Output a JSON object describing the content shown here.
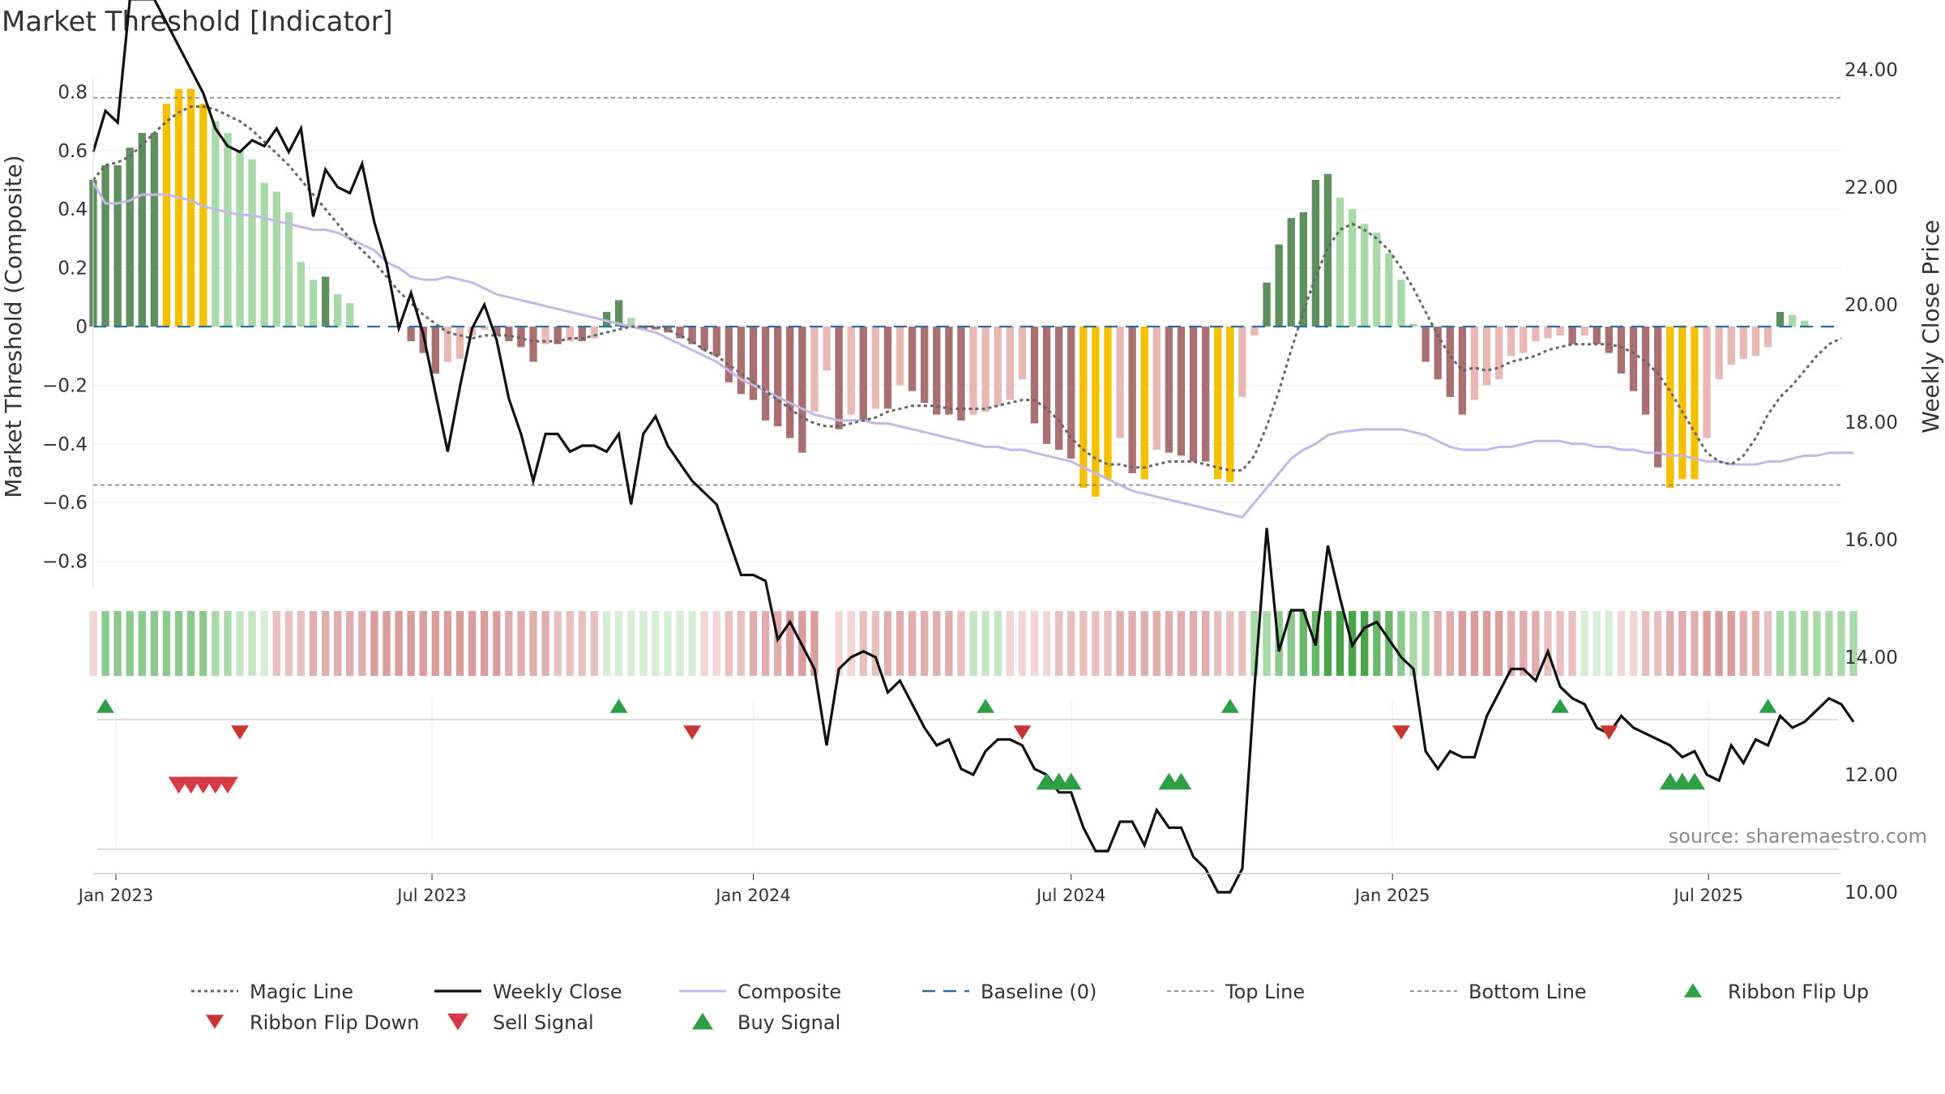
{
  "chart_data": {
    "type": "bar",
    "title": "Market Threshold [Indicator]",
    "ylabel": "Market Threshold (Composite)",
    "y2label": "Weekly Close Price",
    "ylim": [
      -0.89,
      0.84
    ],
    "y2lim": [
      8.8,
      26.4
    ],
    "yticks": [
      0.8,
      0.6,
      0.4,
      0.2,
      0,
      -0.2,
      -0.4,
      -0.6,
      -0.8
    ],
    "ytick_labels": [
      "0.8",
      "0.6",
      "0.4",
      "0.2",
      "0",
      "−0.2",
      "−0.4",
      "−0.6",
      "−0.8"
    ],
    "y2ticks": [
      26,
      24,
      22,
      20,
      18,
      16,
      14,
      12,
      10
    ],
    "y2tick_labels": [
      "26.00",
      "24.00",
      "22.00",
      "20.00",
      "18.00",
      "16.00",
      "14.00",
      "12.00",
      "10.00"
    ],
    "x_start": "2022-12-19",
    "x_end": "2025-09-15",
    "x_ticks": [
      {
        "date": "2023-01-01",
        "label": "Jan 2023"
      },
      {
        "date": "2023-07-01",
        "label": "Jul 2023"
      },
      {
        "date": "2024-01-01",
        "label": "Jan 2024"
      },
      {
        "date": "2024-07-01",
        "label": "Jul 2024"
      },
      {
        "date": "2025-01-01",
        "label": "Jan 2025"
      },
      {
        "date": "2025-07-01",
        "label": "Jul 2025"
      }
    ],
    "top_line": 0.78,
    "bottom_line": -0.54,
    "baseline": 0,
    "source": "source: sharemaestro.com",
    "bar_colors": {
      "strong_pos": "#5e8f5e",
      "weak_pos": "#a9d8a9",
      "strong_neg": "#a87070",
      "weak_neg": "#e8b8b4",
      "extreme": "#f5c000"
    },
    "composite_bars": [
      {
        "start": "2022-12-19",
        "values": [
          0.5,
          0.55,
          0.55,
          0.61,
          0.66,
          0.66,
          0.76,
          0.81,
          0.81,
          0.76,
          0.7,
          0.66,
          0.6,
          0.57,
          0.49,
          0.46,
          0.39,
          0.22,
          0.16,
          0.17,
          0.11,
          0.08,
          0,
          0,
          0,
          0,
          -0.05,
          -0.09,
          -0.16,
          -0.12,
          -0.11,
          -0.03,
          -0.01,
          -0.03,
          -0.05,
          -0.07,
          -0.12,
          -0.06,
          -0.06,
          -0.05,
          -0.05,
          -0.04,
          0.05,
          0.09,
          0.03,
          -0.01,
          -0.01,
          -0.02,
          -0.04,
          -0.06,
          -0.08,
          -0.1,
          -0.19,
          -0.23,
          -0.25,
          -0.32,
          -0.34,
          -0.38,
          -0.43,
          -0.29,
          -0.15,
          -0.35,
          -0.3,
          -0.32,
          -0.28,
          -0.28,
          -0.2,
          -0.22,
          -0.26,
          -0.3,
          -0.3,
          -0.32,
          -0.3,
          -0.29,
          -0.27,
          -0.25,
          -0.18,
          -0.33,
          -0.4,
          -0.42,
          -0.45,
          -0.55,
          -0.58,
          -0.52,
          -0.38,
          -0.5,
          -0.52,
          -0.42,
          -0.43,
          -0.44,
          -0.46,
          -0.46,
          -0.52,
          -0.53,
          -0.24,
          -0.03,
          0.15,
          0.28,
          0.37,
          0.39,
          0.5,
          0.52,
          0.44,
          0.4,
          0.35,
          0.32,
          0.25,
          0.16,
          0.01,
          -0.12,
          -0.18,
          -0.24,
          -0.3,
          -0.25,
          -0.2,
          -0.18,
          -0.1,
          -0.09,
          -0.05,
          -0.04,
          -0.03,
          -0.06,
          -0.03,
          -0.06,
          -0.09,
          -0.16,
          -0.22,
          -0.3,
          -0.48,
          -0.55,
          -0.52,
          -0.52,
          -0.38,
          -0.18,
          -0.13,
          -0.11,
          -0.1,
          -0.07,
          0.05,
          0.04,
          0.02
        ]
      }
    ],
    "weekly_close": [
      {
        "start": "2022-12-19",
        "values": [
          22.6,
          23.3,
          23.1,
          25.2,
          25.2,
          25.2,
          24.8,
          24.4,
          24.0,
          23.6,
          23.0,
          22.7,
          22.6,
          22.8,
          22.7,
          23.0,
          22.6,
          23.0,
          21.5,
          22.3,
          22.0,
          21.9,
          22.4,
          21.4,
          20.7,
          19.6,
          20.2,
          19.5,
          18.5,
          17.5,
          18.6,
          19.6,
          20.0,
          19.4,
          18.4,
          17.8,
          17.0,
          17.8,
          17.8,
          17.5,
          17.6,
          17.6,
          17.5,
          17.8,
          16.6,
          17.8,
          18.1,
          17.6,
          17.3,
          17.0,
          16.8,
          16.6,
          16.0,
          15.4,
          15.4,
          15.3,
          14.3,
          14.6,
          14.2,
          13.8,
          12.5,
          13.8,
          14.0,
          14.1,
          14.0,
          13.4,
          13.6,
          13.2,
          12.8,
          12.5,
          12.6,
          12.1,
          12.0,
          12.4,
          12.6,
          12.6,
          12.5,
          12.1,
          12.0,
          11.7,
          11.7,
          11.1,
          10.7,
          10.7,
          11.2,
          11.2,
          10.8,
          11.4,
          11.1,
          11.1,
          10.6,
          10.4,
          10.0,
          10.0,
          10.4,
          13.5,
          16.2,
          14.1,
          14.8,
          14.8,
          14.2,
          15.9,
          15.0,
          14.2,
          14.5,
          14.6,
          14.3,
          14.0,
          13.8,
          12.4,
          12.1,
          12.4,
          12.3,
          12.3,
          13.0,
          13.4,
          13.8,
          13.8,
          13.6,
          14.1,
          13.5,
          13.3,
          13.2,
          12.8,
          12.7,
          13.0,
          12.8,
          12.7,
          12.6,
          12.5,
          12.3,
          12.4,
          12.0,
          11.9,
          12.5,
          12.2,
          12.6,
          12.5,
          13.0,
          12.8,
          12.9,
          13.1,
          13.3,
          13.2,
          12.9
        ]
      }
    ],
    "composite_line": [
      0.49,
      0.42,
      0.42,
      0.43,
      0.45,
      0.45,
      0.45,
      0.44,
      0.43,
      0.41,
      0.4,
      0.39,
      0.38,
      0.38,
      0.37,
      0.36,
      0.35,
      0.34,
      0.33,
      0.33,
      0.32,
      0.3,
      0.28,
      0.26,
      0.22,
      0.2,
      0.17,
      0.16,
      0.16,
      0.17,
      0.16,
      0.15,
      0.13,
      0.11,
      0.1,
      0.09,
      0.08,
      0.07,
      0.06,
      0.05,
      0.04,
      0.03,
      0.02,
      0.01,
      0,
      -0.01,
      -0.02,
      -0.04,
      -0.06,
      -0.08,
      -0.1,
      -0.12,
      -0.15,
      -0.18,
      -0.2,
      -0.22,
      -0.24,
      -0.26,
      -0.28,
      -0.3,
      -0.31,
      -0.32,
      -0.32,
      -0.32,
      -0.33,
      -0.33,
      -0.34,
      -0.35,
      -0.36,
      -0.37,
      -0.38,
      -0.39,
      -0.4,
      -0.41,
      -0.41,
      -0.42,
      -0.42,
      -0.43,
      -0.44,
      -0.45,
      -0.46,
      -0.48,
      -0.5,
      -0.52,
      -0.54,
      -0.56,
      -0.57,
      -0.58,
      -0.59,
      -0.6,
      -0.61,
      -0.62,
      -0.63,
      -0.64,
      -0.65,
      -0.6,
      -0.55,
      -0.5,
      -0.45,
      -0.42,
      -0.4,
      -0.37,
      -0.36,
      -0.355,
      -0.35,
      -0.35,
      -0.35,
      -0.35,
      -0.36,
      -0.37,
      -0.39,
      -0.41,
      -0.42,
      -0.42,
      -0.42,
      -0.41,
      -0.41,
      -0.4,
      -0.39,
      -0.39,
      -0.39,
      -0.4,
      -0.4,
      -0.41,
      -0.41,
      -0.42,
      -0.42,
      -0.43,
      -0.43,
      -0.44,
      -0.44,
      -0.45,
      -0.46,
      -0.46,
      -0.47,
      -0.47,
      -0.47,
      -0.46,
      -0.46,
      -0.45,
      -0.44,
      -0.44,
      -0.43,
      -0.43,
      -0.43
    ],
    "magic_line": [
      0.5,
      0.55,
      0.56,
      0.58,
      0.62,
      0.66,
      0.7,
      0.73,
      0.75,
      0.75,
      0.74,
      0.72,
      0.7,
      0.67,
      0.63,
      0.59,
      0.55,
      0.5,
      0.45,
      0.4,
      0.35,
      0.3,
      0.26,
      0.22,
      0.17,
      0.12,
      0.08,
      0.04,
      0.01,
      -0.02,
      -0.03,
      -0.04,
      -0.03,
      -0.03,
      -0.03,
      -0.04,
      -0.05,
      -0.05,
      -0.05,
      -0.04,
      -0.04,
      -0.03,
      -0.02,
      -0.01,
      0,
      0,
      0,
      -0.01,
      -0.03,
      -0.05,
      -0.08,
      -0.1,
      -0.13,
      -0.16,
      -0.19,
      -0.22,
      -0.25,
      -0.28,
      -0.31,
      -0.33,
      -0.34,
      -0.34,
      -0.33,
      -0.32,
      -0.31,
      -0.29,
      -0.28,
      -0.27,
      -0.27,
      -0.27,
      -0.28,
      -0.28,
      -0.28,
      -0.28,
      -0.27,
      -0.26,
      -0.25,
      -0.25,
      -0.28,
      -0.32,
      -0.38,
      -0.42,
      -0.45,
      -0.47,
      -0.47,
      -0.48,
      -0.48,
      -0.47,
      -0.46,
      -0.46,
      -0.46,
      -0.47,
      -0.48,
      -0.49,
      -0.49,
      -0.44,
      -0.34,
      -0.22,
      -0.08,
      0.05,
      0.17,
      0.27,
      0.33,
      0.35,
      0.33,
      0.3,
      0.26,
      0.2,
      0.13,
      0.05,
      -0.03,
      -0.1,
      -0.15,
      -0.14,
      -0.15,
      -0.14,
      -0.12,
      -0.11,
      -0.1,
      -0.08,
      -0.07,
      -0.06,
      -0.06,
      -0.06,
      -0.06,
      -0.07,
      -0.09,
      -0.12,
      -0.16,
      -0.22,
      -0.29,
      -0.36,
      -0.43,
      -0.46,
      -0.47,
      -0.44,
      -0.38,
      -0.3,
      -0.24,
      -0.2,
      -0.15,
      -0.1,
      -0.06,
      -0.04
    ],
    "ribbon_colors": [
      "#f2d5d5",
      "#8cc98c",
      "#8cc98c",
      "#8cc98c",
      "#8cc98c",
      "#8cc98c",
      "#8cc98c",
      "#8cc98c",
      "#8cc98c",
      "#8cc98c",
      "#a9d8a9",
      "#a9d8a9",
      "#c4e5c4",
      "#c4e5c4",
      "#d6edd6",
      "#e8c0c0",
      "#e8c0c0",
      "#e8c0c0",
      "#e0aeae",
      "#e0aeae",
      "#e0aeae",
      "#e0aeae",
      "#e0aeae",
      "#d99d9d",
      "#d99d9d",
      "#d99d9d",
      "#d99d9d",
      "#d99d9d",
      "#d99d9d",
      "#d99d9d",
      "#d99d9d",
      "#d99d9d",
      "#d99d9d",
      "#d99d9d",
      "#e0aeae",
      "#e0aeae",
      "#e0aeae",
      "#e0aeae",
      "#e8c0c0",
      "#e8c0c0",
      "#e8c0c0",
      "#e8c0c0",
      "#d6edd6",
      "#d6edd6",
      "#d6edd6",
      "#d6edd6",
      "#d6edd6",
      "#d6edd6",
      "#d6edd6",
      "#d6edd6",
      "#f2d5d5",
      "#f2d5d5",
      "#e8c0c0",
      "#e8c0c0",
      "#e0aeae",
      "#e0aeae",
      "#e0aeae",
      "#d99d9d",
      "#d99d9d",
      "#d99d9d",
      "#ffffff",
      "#f2d5d5",
      "#f2d5d5",
      "#e8c0c0",
      "#e8c0c0",
      "#e0aeae",
      "#e0aeae",
      "#e0aeae",
      "#e0aeae",
      "#e0aeae",
      "#e0aeae",
      "#e8c0c0",
      "#c4e5c4",
      "#c4e5c4",
      "#c4e5c4",
      "#f2d5d5",
      "#f2d5d5",
      "#f2d5d5",
      "#f2d5d5",
      "#e8c0c0",
      "#e8c0c0",
      "#e8c0c0",
      "#e8c0c0",
      "#e8c0c0",
      "#e0aeae",
      "#e0aeae",
      "#e0aeae",
      "#e0aeae",
      "#e0aeae",
      "#e0aeae",
      "#e0aeae",
      "#e0aeae",
      "#e8c0c0",
      "#e8c0c0",
      "#e8c0c0",
      "#a9d8a9",
      "#a9d8a9",
      "#8cc98c",
      "#8cc98c",
      "#6ab86a",
      "#6ab86a",
      "#4aa54a",
      "#4aa54a",
      "#4aa54a",
      "#4aa54a",
      "#6ab86a",
      "#6ab86a",
      "#8cc98c",
      "#a9d8a9",
      "#a9d8a9",
      "#e0aeae",
      "#e0aeae",
      "#d99d9d",
      "#d99d9d",
      "#d99d9d",
      "#d99d9d",
      "#e0aeae",
      "#e0aeae",
      "#e0aeae",
      "#e8c0c0",
      "#e8c0c0",
      "#e8c0c0",
      "#d6edd6",
      "#d6edd6",
      "#d6edd6",
      "#f2d5d5",
      "#f2d5d5",
      "#e8c0c0",
      "#e8c0c0",
      "#e0aeae",
      "#e0aeae",
      "#e0aeae",
      "#d99d9d",
      "#d99d9d",
      "#d99d9d",
      "#e0aeae",
      "#e0aeae",
      "#e8c0c0",
      "#a9d8a9",
      "#a9d8a9",
      "#a9d8a9",
      "#a9d8a9",
      "#a9d8a9",
      "#a9d8a9",
      "#a9d8a9"
    ],
    "ribbon_flip_up": [
      "2022-12-26",
      "2023-10-16",
      "2024-05-13",
      "2024-09-30",
      "2025-04-07",
      "2025-08-04"
    ],
    "ribbon_flip_down": [
      "2023-03-13",
      "2023-11-27",
      "2024-06-03",
      "2025-01-06",
      "2025-05-05"
    ],
    "sell_signal": [
      "2023-02-06",
      "2023-02-13",
      "2023-02-20",
      "2023-02-27",
      "2023-03-06"
    ],
    "buy_signal": [
      "2024-06-17",
      "2024-06-24",
      "2024-07-01",
      "2024-08-26",
      "2024-09-02",
      "2025-06-09",
      "2025-06-16",
      "2025-06-23"
    ],
    "legend_placement": "bottom",
    "legend": [
      {
        "key": "magic",
        "label": "Magic Line"
      },
      {
        "key": "close",
        "label": "Weekly Close"
      },
      {
        "key": "composite",
        "label": "Composite"
      },
      {
        "key": "baseline",
        "label": "Baseline (0)"
      },
      {
        "key": "top",
        "label": "Top Line"
      },
      {
        "key": "bottom",
        "label": "Bottom Line"
      },
      {
        "key": "flipup",
        "label": "Ribbon Flip Up"
      },
      {
        "key": "flipdown",
        "label": "Ribbon Flip Down"
      },
      {
        "key": "sell",
        "label": "Sell Signal"
      },
      {
        "key": "buy",
        "label": "Buy Signal"
      }
    ],
    "colors": {
      "close": "#111111",
      "composite": "#c3b8e6",
      "magic": "#666666",
      "baseline": "#2f6f9f",
      "ref_lines": "#888888",
      "buy": "#2e9e47",
      "sell": "#d83a45",
      "flip_down": "#c93434"
    }
  }
}
